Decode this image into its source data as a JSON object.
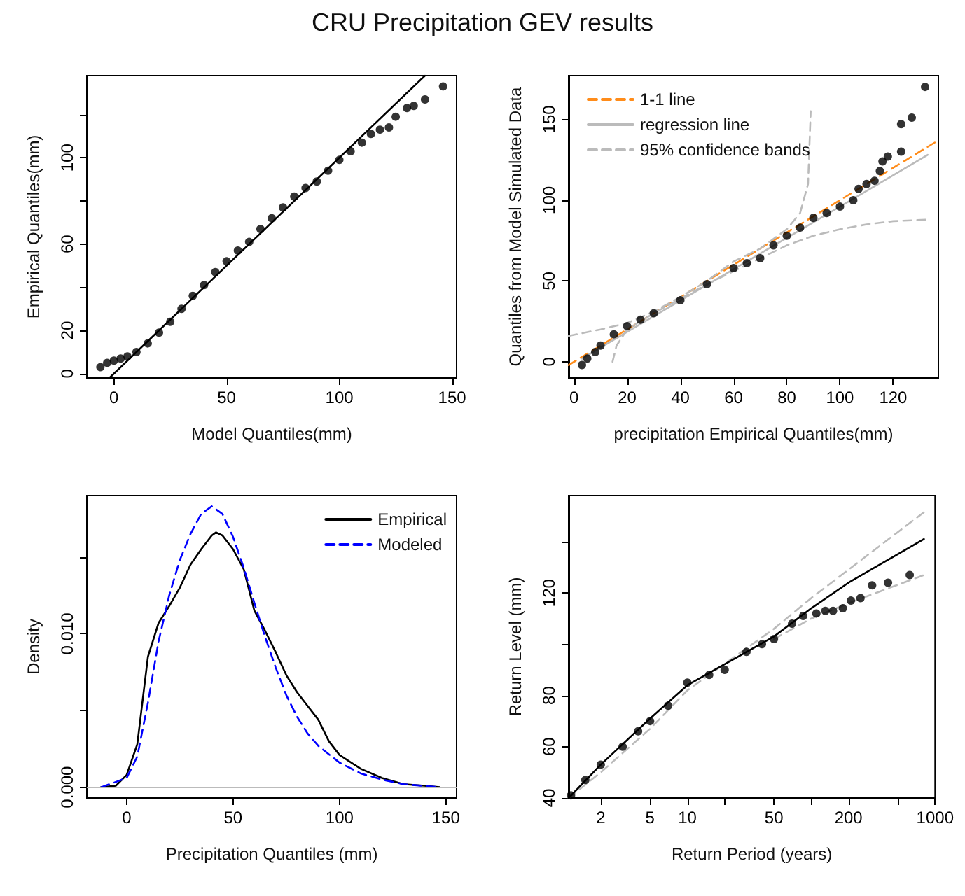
{
  "chart_data": [
    {
      "type": "scatter",
      "title": "CRU Precipitation GEV results",
      "xlabel": "Model Quantiles(mm)",
      "ylabel": "Empirical Quantiles(mm)",
      "xlim": [
        -12,
        152
      ],
      "ylim": [
        -2,
        138
      ],
      "xticks": [
        0,
        50,
        100,
        150
      ],
      "yticks": [
        0,
        20,
        {
          "value": 40,
          "label": null
        },
        60,
        {
          "value": 80,
          "label": null
        },
        100,
        {
          "value": 120,
          "label": null
        }
      ],
      "legend": false,
      "series": [
        {
          "color": "#000000",
          "marker": "circle",
          "x": [
            -6,
            -3,
            0,
            3,
            6,
            10,
            15,
            20,
            25,
            30,
            35,
            40,
            45,
            50,
            55,
            60,
            65,
            70,
            75,
            80,
            85,
            90,
            95,
            100,
            105,
            110,
            114,
            118,
            122,
            125,
            130,
            133,
            138,
            146
          ],
          "values": [
            3,
            5,
            6,
            7,
            8,
            10,
            14,
            19,
            24,
            30,
            36,
            41,
            47,
            52,
            57,
            61,
            67,
            72,
            77,
            82,
            86,
            89,
            94,
            99,
            103,
            107,
            111,
            113,
            114,
            119,
            123,
            124,
            127,
            133
          ]
        },
        {
          "type": "line",
          "color": "#000000",
          "line_style": "solid",
          "x": [
            -2,
            138
          ],
          "values": [
            -2,
            138
          ]
        }
      ]
    },
    {
      "type": "scatter",
      "xlabel": "precipitation Empirical Quantiles(mm)",
      "ylabel": "Quantiles from Model Simulated Data",
      "xlim": [
        -2,
        137
      ],
      "ylim": [
        -10,
        177
      ],
      "xticks": [
        0,
        20,
        40,
        60,
        80,
        100,
        120
      ],
      "yticks": [
        0,
        50,
        100,
        150
      ],
      "legend": "top left",
      "series": [
        {
          "color": "#000000",
          "marker": "circle",
          "x": [
            3,
            5,
            8,
            10,
            15,
            20,
            25,
            30,
            40,
            50,
            60,
            65,
            70,
            75,
            80,
            85,
            90,
            95,
            100,
            105,
            107,
            110,
            113,
            115,
            116,
            118,
            123,
            123,
            127,
            132
          ],
          "values": [
            -2,
            2,
            6,
            10,
            17,
            22,
            26,
            30,
            38,
            48,
            58,
            61,
            64,
            72,
            78,
            83,
            89,
            92,
            96,
            100,
            107,
            110,
            112,
            118,
            124,
            127,
            130,
            147,
            151,
            170
          ]
        },
        {
          "name": "1-1 line",
          "type": "line",
          "color": "#ff8c1a",
          "line_style": "dashed",
          "x": [
            -2,
            137
          ],
          "values": [
            -2,
            137
          ]
        },
        {
          "name": "regression line",
          "type": "line",
          "color": "#bbbbbb",
          "line_style": "solid",
          "x": [
            3,
            133
          ],
          "values": [
            2,
            128
          ]
        },
        {
          "name": "95% confidence bands",
          "type": "line",
          "color": "#bbbbbb",
          "line_style": "dashed",
          "x": [
            -2,
            10,
            20,
            30,
            40,
            50,
            60,
            70,
            80,
            85,
            88,
            89
          ],
          "values": [
            16,
            20,
            24,
            31,
            40,
            50,
            62,
            70,
            82,
            92,
            110,
            155
          ]
        },
        {
          "type": "line",
          "color": "#bbbbbb",
          "line_style": "dashed",
          "x": [
            14.5,
            16,
            20,
            30,
            50,
            60,
            70,
            80,
            90,
            100,
            110,
            120,
            133
          ],
          "values": [
            0,
            10,
            20,
            30,
            48,
            56,
            64,
            72,
            78,
            82,
            85,
            87,
            88
          ]
        }
      ]
    },
    {
      "type": "line",
      "xlabel": "Precipitation Quantiles (mm)",
      "ylabel": "Density",
      "xlim": [
        -18.7,
        155
      ],
      "ylim": [
        -0.0007,
        0.019
      ],
      "xticks": [
        0,
        50,
        100,
        150
      ],
      "yticks": [
        {
          "value": 0,
          "label": "0.000"
        },
        {
          "value": 0.005,
          "label": null
        },
        {
          "value": 0.01,
          "label": "0.010"
        },
        {
          "value": 0.015,
          "label": null
        }
      ],
      "legend": "top right",
      "ref_lines": [
        {
          "axis": "y",
          "value": 0,
          "color": "#bbbbbb"
        }
      ],
      "series": [
        {
          "name": "Empirical",
          "color": "#000000",
          "line_style": "solid",
          "x": [
            -12,
            -5,
            0,
            5,
            10,
            15,
            20,
            25,
            30,
            35,
            40,
            42,
            45,
            50,
            55,
            60,
            65,
            70,
            75,
            80,
            85,
            90,
            95,
            100,
            110,
            120,
            130,
            140,
            147
          ],
          "values": [
            0,
            0.0001,
            0.0008,
            0.0028,
            0.0085,
            0.0107,
            0.0118,
            0.013,
            0.0145,
            0.0155,
            0.0164,
            0.0166,
            0.0164,
            0.0155,
            0.0142,
            0.0115,
            0.0102,
            0.0088,
            0.0073,
            0.0062,
            0.0053,
            0.0044,
            0.003,
            0.0021,
            0.0012,
            0.0006,
            0.0002,
            0.0001,
            0
          ]
        },
        {
          "name": "Modeled",
          "color": "#0000ff",
          "line_style": "dashed",
          "x": [
            -12,
            0,
            5,
            10,
            15,
            20,
            25,
            30,
            35,
            40,
            45,
            50,
            55,
            60,
            65,
            70,
            75,
            80,
            85,
            90,
            100,
            110,
            120,
            130,
            147
          ],
          "values": [
            0,
            0.0006,
            0.002,
            0.0055,
            0.0095,
            0.0125,
            0.0148,
            0.0165,
            0.0178,
            0.0183,
            0.0178,
            0.0163,
            0.0143,
            0.012,
            0.0098,
            0.0078,
            0.006,
            0.0046,
            0.0035,
            0.0027,
            0.0016,
            0.0009,
            0.0005,
            0.0002,
            0
          ]
        }
      ]
    },
    {
      "type": "scatter",
      "xlabel": "Return Period (years)",
      "ylabel": "Return Level (mm)",
      "log": "x",
      "xlim": [
        1.1,
        1000
      ],
      "ylim": [
        40,
        158
      ],
      "xticks": [
        2,
        5,
        10,
        {
          "value": 20,
          "label": null
        },
        50,
        {
          "value": 100,
          "label": null
        },
        200,
        {
          "value": 500,
          "label": null
        },
        1000
      ],
      "yticks": [
        40,
        60,
        80,
        {
          "value": 100,
          "label": null
        },
        120,
        {
          "value": 140,
          "label": null
        }
      ],
      "legend": false,
      "series": [
        {
          "type": "line",
          "color": "#bbbbbb",
          "line_style": "dashed",
          "x": [
            1.1,
            2,
            5,
            10,
            50,
            100,
            813
          ],
          "values": [
            40,
            50,
            67,
            82,
            106,
            118,
            151.5
          ]
        },
        {
          "type": "line",
          "color": "#bbbbbb",
          "line_style": "dashed",
          "x": [
            50,
            100,
            200,
            813
          ],
          "values": [
            102,
            110,
            116,
            127
          ]
        },
        {
          "type": "line",
          "color": "#000000",
          "line_style": "solid",
          "x": [
            1.1,
            2,
            5,
            10,
            50,
            100,
            200,
            813
          ],
          "values": [
            40,
            53,
            71,
            84,
            103,
            114,
            124,
            141
          ]
        },
        {
          "color": "#000000",
          "marker": "circle",
          "x": [
            1.15,
            1.5,
            2,
            3,
            4,
            5,
            7,
            10,
            15,
            20,
            30,
            40,
            50,
            70,
            86,
            110,
            130,
            150,
            180,
            209,
            250,
            310,
            417,
            624
          ],
          "values": [
            41,
            47,
            53,
            60,
            66,
            70,
            76,
            85,
            88,
            90,
            97,
            100,
            102,
            108,
            111,
            112,
            113,
            113,
            114,
            117,
            118,
            123,
            124,
            127
          ]
        }
      ]
    }
  ]
}
